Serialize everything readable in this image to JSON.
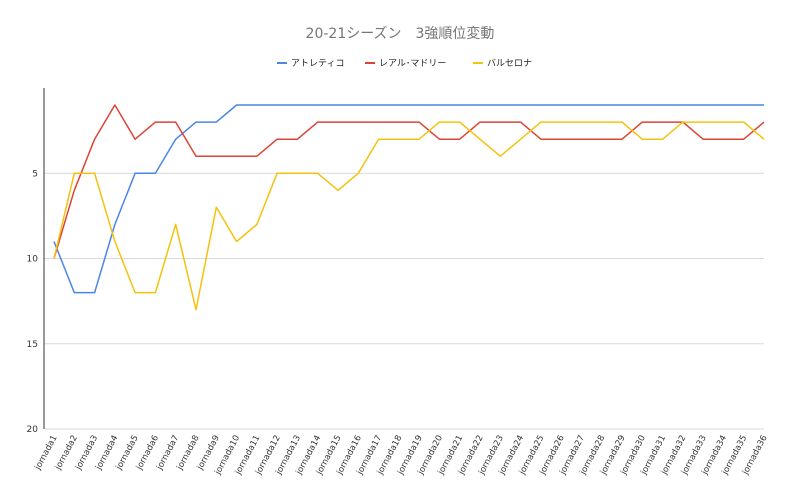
{
  "chart_data": {
    "type": "line",
    "title": "20-21シーズン　3強順位変動",
    "xlabel": "",
    "ylabel": "",
    "y_reversed": true,
    "ylim": [
      20,
      1
    ],
    "yticks": [
      5,
      10,
      15,
      20
    ],
    "grid": true,
    "legend_position": "top",
    "categories": [
      "jornada1",
      "jornada2",
      "jornada3",
      "jornada4",
      "jornada5",
      "jornada6",
      "jornada7",
      "jornada8",
      "jornada9",
      "jornada10",
      "jornada11",
      "jornada12",
      "jornada13",
      "jornada14",
      "jornada15",
      "jornada16",
      "jornada17",
      "jornada18",
      "jornada19",
      "jornada20",
      "jornada21",
      "jornada22",
      "jornada23",
      "jornada24",
      "jornada25",
      "jornada26",
      "jornada27",
      "jornada28",
      "jornada29",
      "jornada30",
      "jornada31",
      "jornada32",
      "jornada33",
      "jornada34",
      "jornada35",
      "jornada36"
    ],
    "series": [
      {
        "name": "アトレティコ",
        "color": "#4a86e8",
        "values": [
          9,
          12,
          12,
          8,
          5,
          5,
          3,
          2,
          2,
          1,
          1,
          1,
          1,
          1,
          1,
          1,
          1,
          1,
          1,
          1,
          1,
          1,
          1,
          1,
          1,
          1,
          1,
          1,
          1,
          1,
          1,
          1,
          1,
          1,
          1,
          1
        ]
      },
      {
        "name": "レアル･マドリー",
        "color": "#db4437",
        "values": [
          10,
          6,
          3,
          1,
          3,
          2,
          2,
          4,
          4,
          4,
          4,
          3,
          3,
          2,
          2,
          2,
          2,
          2,
          2,
          3,
          3,
          2,
          2,
          2,
          3,
          3,
          3,
          3,
          3,
          2,
          2,
          2,
          3,
          3,
          3,
          2
        ]
      },
      {
        "name": "バルセロナ",
        "color": "#f4c20d",
        "values": [
          10,
          5,
          5,
          9,
          12,
          12,
          8,
          13,
          7,
          9,
          8,
          5,
          5,
          5,
          6,
          5,
          3,
          3,
          3,
          2,
          2,
          3,
          4,
          3,
          2,
          2,
          2,
          2,
          2,
          3,
          3,
          2,
          2,
          2,
          2,
          3
        ]
      }
    ]
  }
}
